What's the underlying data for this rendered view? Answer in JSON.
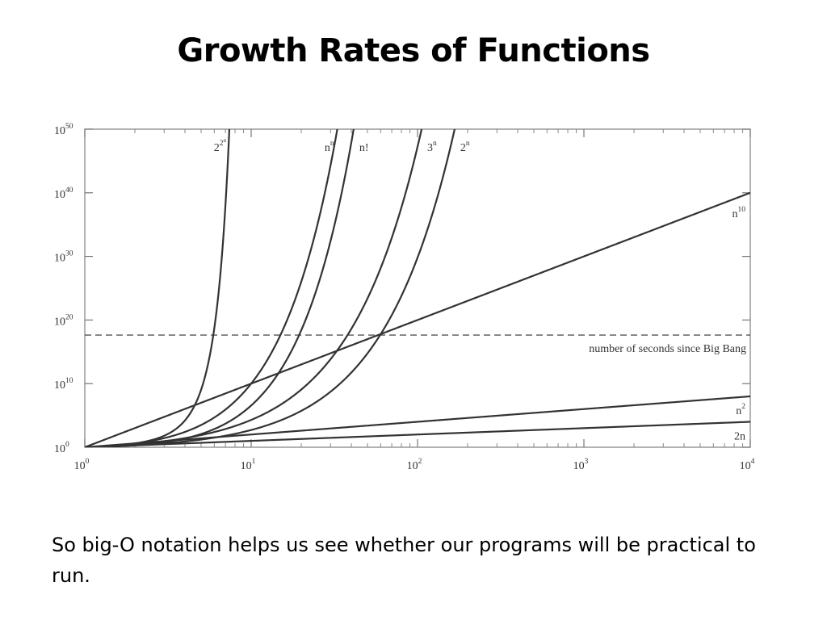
{
  "slide": {
    "title": "Growth Rates of Functions",
    "caption": "So big-O notation helps us see whether our programs will be practical to run."
  },
  "chart_data": {
    "type": "line",
    "title": "",
    "xlabel": "",
    "ylabel": "",
    "x_scale": "log",
    "y_scale": "log",
    "xlim": [
      1,
      10000
    ],
    "ylim": [
      1,
      1e+50
    ],
    "grid": false,
    "x_ticks": [
      {
        "base": "10",
        "exp": "0",
        "value": 1
      },
      {
        "base": "10",
        "exp": "1",
        "value": 10
      },
      {
        "base": "10",
        "exp": "2",
        "value": 100
      },
      {
        "base": "10",
        "exp": "3",
        "value": 1000
      },
      {
        "base": "10",
        "exp": "4",
        "value": 10000
      }
    ],
    "y_ticks": [
      {
        "base": "10",
        "exp": "0",
        "value": 1
      },
      {
        "base": "10",
        "exp": "10",
        "value": 10000000000.0
      },
      {
        "base": "10",
        "exp": "20",
        "value": 1e+20
      },
      {
        "base": "10",
        "exp": "30",
        "value": 1e+30
      },
      {
        "base": "10",
        "exp": "40",
        "value": 1e+40
      },
      {
        "base": "10",
        "exp": "50",
        "value": 1e+50
      }
    ],
    "series": [
      {
        "id": "doubleexp",
        "base": "2",
        "sup": "2",
        "sup2": "n",
        "label_pos": "top"
      },
      {
        "id": "nn",
        "base": "n",
        "sup": "n",
        "label_pos": "top"
      },
      {
        "id": "fact",
        "base": "n!",
        "sup": "",
        "label_pos": "top"
      },
      {
        "id": "exp3",
        "base": "3",
        "sup": "n",
        "label_pos": "top"
      },
      {
        "id": "exp2",
        "base": "2",
        "sup": "n",
        "label_pos": "top"
      },
      {
        "id": "n10",
        "base": "n",
        "sup": "10",
        "label_pos": "right"
      },
      {
        "id": "n2",
        "base": "n",
        "sup": "2",
        "label_pos": "right"
      },
      {
        "id": "lin2",
        "base": "2n",
        "sup": "",
        "label_pos": "right"
      }
    ],
    "reference_line": {
      "value": 4.3e+17,
      "label": "number of seconds since Big Bang",
      "style": "dashed"
    }
  }
}
